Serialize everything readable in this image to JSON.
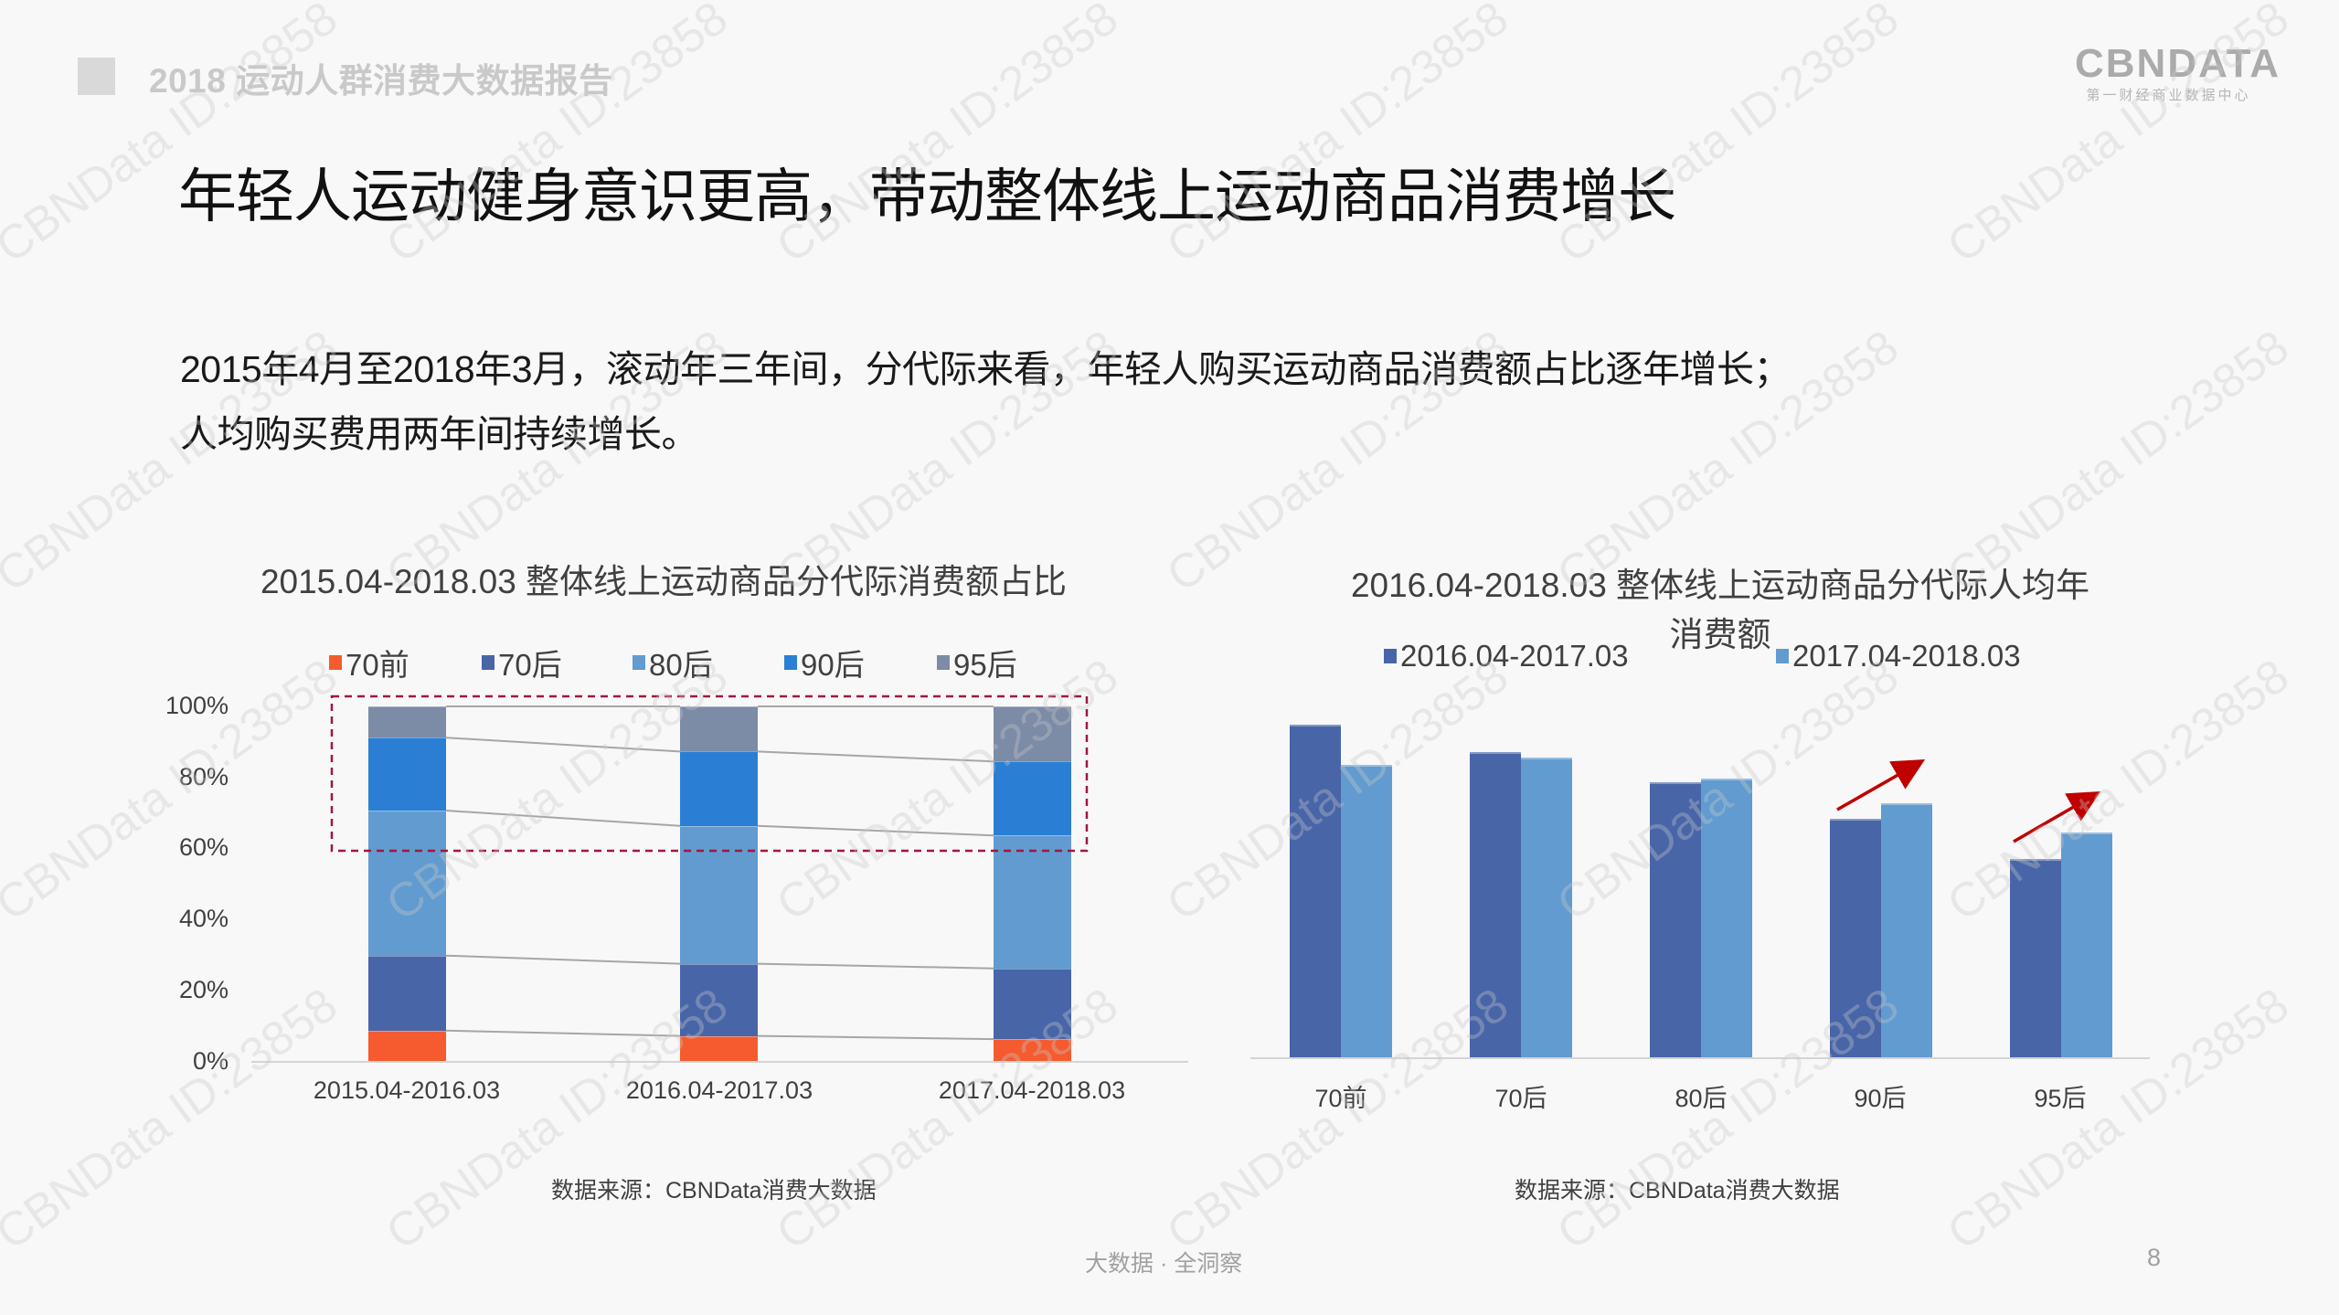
{
  "header": {
    "report_title": "2018 运动人群消费大数据报告",
    "logo_main": "CBNDATA",
    "logo_sub": "第一财经商业数据中心"
  },
  "slide": {
    "title": "年轻人运动健身意识更高，带动整体线上运动商品消费增长",
    "body_lines": [
      "2015年4月至2018年3月，滚动年三年间，分代际来看，年轻人购买运动商品消费额占比逐年增长；",
      "人均购买费用两年间持续增长。"
    ]
  },
  "colors": {
    "gen_70qian": "#f55b2e",
    "gen_70hou": "#4865a8",
    "gen_80hou": "#619bd0",
    "gen_90hou": "#2a7fd4",
    "gen_95hou": "#7c8ba6",
    "period_a": "#4865a8",
    "period_b": "#619bd0",
    "highlight_box": "#a0173d",
    "arrow": "#c00000"
  },
  "chart_data": [
    {
      "type": "bar",
      "stacked": true,
      "percent": true,
      "title": "2015.04-2018.03 整体线上运动商品分代际消费额占比",
      "categories": [
        "2015.04-2016.03",
        "2016.04-2017.03",
        "2017.04-2018.03"
      ],
      "series": [
        {
          "name": "70前",
          "values": [
            8.8,
            7.3,
            6.4
          ]
        },
        {
          "name": "70后",
          "values": [
            21.1,
            20.3,
            19.9
          ]
        },
        {
          "name": "80后",
          "values": [
            40.8,
            38.8,
            37.4
          ]
        },
        {
          "name": "90后",
          "values": [
            20.5,
            20.9,
            20.8
          ]
        },
        {
          "name": "95后",
          "values": [
            8.8,
            12.7,
            15.5
          ]
        }
      ],
      "yticks": [
        "0%",
        "20%",
        "40%",
        "60%",
        "80%",
        "100%"
      ],
      "ylim": [
        0,
        100
      ],
      "xlabel": "",
      "ylabel": "",
      "grid": false,
      "legend_position": "top",
      "annotations": [
        "dashed highlight box around 60%-100% region (90后 and 95后)",
        "connector lines between stacked segment boundaries"
      ],
      "source": "数据来源：CBNData消费大数据"
    },
    {
      "type": "bar",
      "stacked": false,
      "title": "2016.04-2018.03 整体线上运动商品分代际人均年消费额",
      "categories": [
        "70前",
        "70后",
        "80后",
        "90后",
        "95后"
      ],
      "series": [
        {
          "name": "2016.04-2017.03",
          "values": [
            100,
            91.8,
            82.7,
            71.8,
            59.7
          ]
        },
        {
          "name": "2017.04-2018.03",
          "values": [
            87.9,
            90.1,
            83.8,
            76.4,
            67.7
          ]
        }
      ],
      "value_note": "relative index (tallest bar = 100); no y-axis shown",
      "xlabel": "",
      "ylabel": "",
      "grid": false,
      "legend_position": "top",
      "annotations": [
        "red upward arrow above 90后",
        "red upward arrow above 95后"
      ],
      "source": "数据来源：CBNData消费大数据"
    }
  ],
  "left_chart": {
    "title": "2015.04-2018.03 整体线上运动商品分代际消费额占比",
    "legend": [
      "70前",
      "70后",
      "80后",
      "90后",
      "95后"
    ],
    "yticks": [
      "100%",
      "80%",
      "60%",
      "40%",
      "20%",
      "0%"
    ],
    "xlabels": [
      "2015.04-2016.03",
      "2016.04-2017.03",
      "2017.04-2018.03"
    ],
    "source": "数据来源：CBNData消费大数据"
  },
  "right_chart": {
    "title_line1": "2016.04-2018.03 整体线上运动商品分代际人均年",
    "title_line2": "消费额",
    "legend": [
      "2016.04-2017.03",
      "2017.04-2018.03"
    ],
    "xlabels": [
      "70前",
      "70后",
      "80后",
      "90后",
      "95后"
    ],
    "source": "数据来源：CBNData消费大数据"
  },
  "footer": {
    "tagline": "大数据 · 全洞察",
    "page_number": "8"
  },
  "watermark": {
    "text": "CBNData ID:23858"
  }
}
